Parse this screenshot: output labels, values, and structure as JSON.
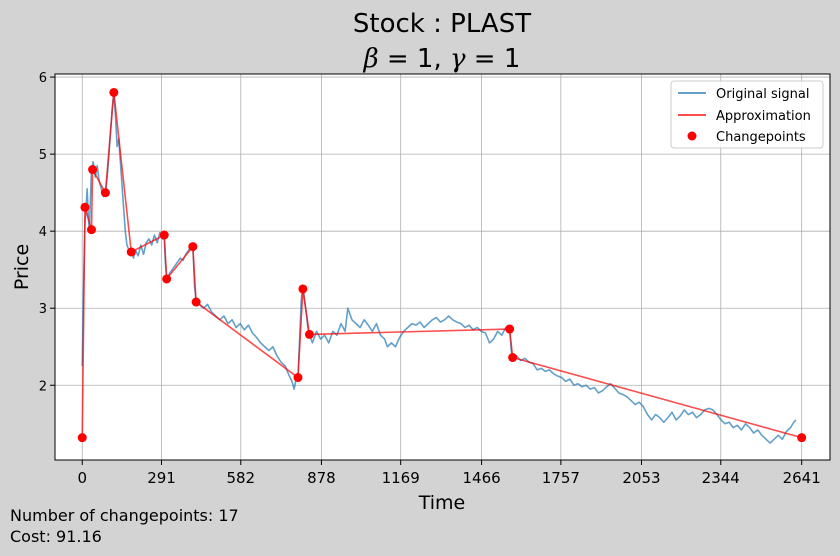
{
  "chart_data": {
    "type": "line",
    "title": "Stock : PLAST",
    "subtitle_parts": {
      "beta_symbol": "β",
      "beta_text": " = 1, ",
      "gamma_symbol": "γ",
      "gamma_text": " = 1"
    },
    "xlabel": "Time",
    "ylabel": "Price",
    "xlim": [
      -100,
      2745
    ],
    "ylim": [
      1.03,
      6.04
    ],
    "x_ticks": [
      0,
      291,
      582,
      878,
      1169,
      1466,
      1757,
      2053,
      2344,
      2641
    ],
    "y_ticks": [
      2,
      3,
      4,
      5,
      6
    ],
    "grid": true,
    "legend_position": "top-right",
    "legend": [
      {
        "label": "Original signal",
        "kind": "line"
      },
      {
        "label": "Approximation",
        "kind": "line"
      },
      {
        "label": "Changepoints",
        "kind": "marker"
      }
    ],
    "colors": {
      "original": "#1f77b4",
      "approximation": "#ff0000",
      "changepoints": "#ff0000",
      "background": "#d3d3d3",
      "plot_area": "#ffffff",
      "grid": "#b0b0b0"
    },
    "series": [
      {
        "name": "Original signal",
        "points": [
          [
            0,
            2.25
          ],
          [
            5,
            3.3
          ],
          [
            10,
            4.1
          ],
          [
            14,
            4.3
          ],
          [
            18,
            4.55
          ],
          [
            22,
            4.2
          ],
          [
            26,
            4.02
          ],
          [
            30,
            4.4
          ],
          [
            34,
            4.8
          ],
          [
            40,
            4.9
          ],
          [
            48,
            4.7
          ],
          [
            55,
            4.85
          ],
          [
            62,
            4.65
          ],
          [
            70,
            4.55
          ],
          [
            78,
            4.45
          ],
          [
            86,
            4.5
          ],
          [
            94,
            4.8
          ],
          [
            102,
            5.2
          ],
          [
            110,
            5.6
          ],
          [
            116,
            5.8
          ],
          [
            122,
            5.5
          ],
          [
            128,
            5.1
          ],
          [
            134,
            5.2
          ],
          [
            140,
            4.9
          ],
          [
            146,
            4.6
          ],
          [
            152,
            4.3
          ],
          [
            158,
            4.0
          ],
          [
            164,
            3.82
          ],
          [
            172,
            3.75
          ],
          [
            180,
            3.78
          ],
          [
            188,
            3.65
          ],
          [
            196,
            3.75
          ],
          [
            205,
            3.68
          ],
          [
            215,
            3.82
          ],
          [
            225,
            3.7
          ],
          [
            235,
            3.85
          ],
          [
            245,
            3.9
          ],
          [
            255,
            3.82
          ],
          [
            265,
            3.95
          ],
          [
            275,
            3.85
          ],
          [
            285,
            3.98
          ],
          [
            295,
            3.9
          ],
          [
            301,
            3.95
          ],
          [
            305,
            3.6
          ],
          [
            310,
            3.38
          ],
          [
            320,
            3.45
          ],
          [
            330,
            3.5
          ],
          [
            340,
            3.55
          ],
          [
            350,
            3.6
          ],
          [
            360,
            3.65
          ],
          [
            370,
            3.62
          ],
          [
            380,
            3.7
          ],
          [
            390,
            3.75
          ],
          [
            400,
            3.8
          ],
          [
            406,
            3.82
          ],
          [
            412,
            3.3
          ],
          [
            418,
            3.08
          ],
          [
            430,
            3.05
          ],
          [
            445,
            3.0
          ],
          [
            460,
            3.05
          ],
          [
            475,
            2.95
          ],
          [
            490,
            2.9
          ],
          [
            505,
            2.85
          ],
          [
            520,
            2.9
          ],
          [
            535,
            2.8
          ],
          [
            550,
            2.85
          ],
          [
            565,
            2.75
          ],
          [
            580,
            2.8
          ],
          [
            595,
            2.72
          ],
          [
            610,
            2.78
          ],
          [
            625,
            2.68
          ],
          [
            640,
            2.62
          ],
          [
            655,
            2.55
          ],
          [
            670,
            2.5
          ],
          [
            685,
            2.45
          ],
          [
            700,
            2.5
          ],
          [
            715,
            2.38
          ],
          [
            730,
            2.3
          ],
          [
            745,
            2.25
          ],
          [
            760,
            2.12
          ],
          [
            770,
            2.05
          ],
          [
            778,
            1.95
          ],
          [
            786,
            2.1
          ],
          [
            792,
            2.1
          ],
          [
            798,
            2.6
          ],
          [
            804,
            3.1
          ],
          [
            810,
            3.3
          ],
          [
            816,
            3.1
          ],
          [
            822,
            2.95
          ],
          [
            828,
            2.75
          ],
          [
            834,
            2.66
          ],
          [
            845,
            2.55
          ],
          [
            860,
            2.7
          ],
          [
            875,
            2.6
          ],
          [
            890,
            2.65
          ],
          [
            905,
            2.55
          ],
          [
            920,
            2.7
          ],
          [
            935,
            2.65
          ],
          [
            950,
            2.8
          ],
          [
            965,
            2.7
          ],
          [
            975,
            3.0
          ],
          [
            990,
            2.85
          ],
          [
            1005,
            2.8
          ],
          [
            1020,
            2.75
          ],
          [
            1035,
            2.85
          ],
          [
            1050,
            2.78
          ],
          [
            1065,
            2.7
          ],
          [
            1080,
            2.8
          ],
          [
            1095,
            2.65
          ],
          [
            1110,
            2.6
          ],
          [
            1120,
            2.5
          ],
          [
            1135,
            2.55
          ],
          [
            1150,
            2.5
          ],
          [
            1165,
            2.62
          ],
          [
            1180,
            2.7
          ],
          [
            1195,
            2.75
          ],
          [
            1210,
            2.8
          ],
          [
            1225,
            2.78
          ],
          [
            1240,
            2.82
          ],
          [
            1255,
            2.75
          ],
          [
            1270,
            2.8
          ],
          [
            1285,
            2.85
          ],
          [
            1300,
            2.88
          ],
          [
            1315,
            2.82
          ],
          [
            1330,
            2.85
          ],
          [
            1345,
            2.9
          ],
          [
            1360,
            2.85
          ],
          [
            1375,
            2.82
          ],
          [
            1390,
            2.8
          ],
          [
            1405,
            2.75
          ],
          [
            1420,
            2.78
          ],
          [
            1435,
            2.72
          ],
          [
            1450,
            2.75
          ],
          [
            1465,
            2.7
          ],
          [
            1480,
            2.68
          ],
          [
            1495,
            2.55
          ],
          [
            1510,
            2.6
          ],
          [
            1525,
            2.7
          ],
          [
            1540,
            2.65
          ],
          [
            1555,
            2.75
          ],
          [
            1569,
            2.72
          ],
          [
            1575,
            2.45
          ],
          [
            1580,
            2.36
          ],
          [
            1595,
            2.38
          ],
          [
            1610,
            2.32
          ],
          [
            1625,
            2.35
          ],
          [
            1640,
            2.3
          ],
          [
            1655,
            2.28
          ],
          [
            1670,
            2.2
          ],
          [
            1685,
            2.22
          ],
          [
            1700,
            2.18
          ],
          [
            1715,
            2.2
          ],
          [
            1730,
            2.15
          ],
          [
            1745,
            2.12
          ],
          [
            1760,
            2.1
          ],
          [
            1775,
            2.05
          ],
          [
            1790,
            2.08
          ],
          [
            1805,
            2.0
          ],
          [
            1820,
            2.02
          ],
          [
            1835,
            1.98
          ],
          [
            1850,
            2.0
          ],
          [
            1865,
            1.95
          ],
          [
            1880,
            1.97
          ],
          [
            1895,
            1.9
          ],
          [
            1910,
            1.93
          ],
          [
            1925,
            1.98
          ],
          [
            1940,
            2.02
          ],
          [
            1955,
            1.96
          ],
          [
            1970,
            1.9
          ],
          [
            1985,
            1.88
          ],
          [
            2000,
            1.85
          ],
          [
            2015,
            1.8
          ],
          [
            2030,
            1.75
          ],
          [
            2045,
            1.78
          ],
          [
            2060,
            1.72
          ],
          [
            2075,
            1.62
          ],
          [
            2090,
            1.55
          ],
          [
            2105,
            1.62
          ],
          [
            2120,
            1.58
          ],
          [
            2135,
            1.52
          ],
          [
            2150,
            1.58
          ],
          [
            2165,
            1.65
          ],
          [
            2180,
            1.55
          ],
          [
            2195,
            1.6
          ],
          [
            2210,
            1.68
          ],
          [
            2225,
            1.62
          ],
          [
            2240,
            1.65
          ],
          [
            2255,
            1.58
          ],
          [
            2270,
            1.62
          ],
          [
            2285,
            1.68
          ],
          [
            2300,
            1.7
          ],
          [
            2315,
            1.68
          ],
          [
            2330,
            1.62
          ],
          [
            2345,
            1.55
          ],
          [
            2360,
            1.5
          ],
          [
            2375,
            1.52
          ],
          [
            2390,
            1.45
          ],
          [
            2405,
            1.48
          ],
          [
            2420,
            1.42
          ],
          [
            2435,
            1.5
          ],
          [
            2450,
            1.45
          ],
          [
            2465,
            1.38
          ],
          [
            2480,
            1.42
          ],
          [
            2495,
            1.35
          ],
          [
            2510,
            1.3
          ],
          [
            2525,
            1.25
          ],
          [
            2540,
            1.3
          ],
          [
            2555,
            1.35
          ],
          [
            2570,
            1.3
          ],
          [
            2585,
            1.4
          ],
          [
            2600,
            1.45
          ],
          [
            2612,
            1.52
          ],
          [
            2620,
            1.55
          ]
        ]
      },
      {
        "name": "Approximation",
        "points": [
          [
            0,
            1.32
          ],
          [
            10,
            4.31
          ],
          [
            34,
            4.02
          ],
          [
            38,
            4.8
          ],
          [
            85,
            4.5
          ],
          [
            116,
            5.8
          ],
          [
            180,
            3.73
          ],
          [
            301,
            3.95
          ],
          [
            310,
            3.38
          ],
          [
            406,
            3.8
          ],
          [
            418,
            3.08
          ],
          [
            792,
            2.1
          ],
          [
            810,
            3.25
          ],
          [
            834,
            2.66
          ],
          [
            1569,
            2.73
          ],
          [
            1580,
            2.36
          ],
          [
            2641,
            1.32
          ]
        ]
      },
      {
        "name": "Changepoints",
        "points": [
          [
            0,
            1.32
          ],
          [
            10,
            4.31
          ],
          [
            34,
            4.02
          ],
          [
            38,
            4.8
          ],
          [
            85,
            4.5
          ],
          [
            116,
            5.8
          ],
          [
            180,
            3.73
          ],
          [
            301,
            3.95
          ],
          [
            310,
            3.38
          ],
          [
            406,
            3.8
          ],
          [
            418,
            3.08
          ],
          [
            792,
            2.1
          ],
          [
            810,
            3.25
          ],
          [
            834,
            2.66
          ],
          [
            1569,
            2.73
          ],
          [
            1580,
            2.36
          ],
          [
            2641,
            1.32
          ]
        ]
      }
    ]
  },
  "footer": {
    "changepoints_line": "Number of changepoints: 17",
    "cost_line": "Cost: 91.16"
  }
}
